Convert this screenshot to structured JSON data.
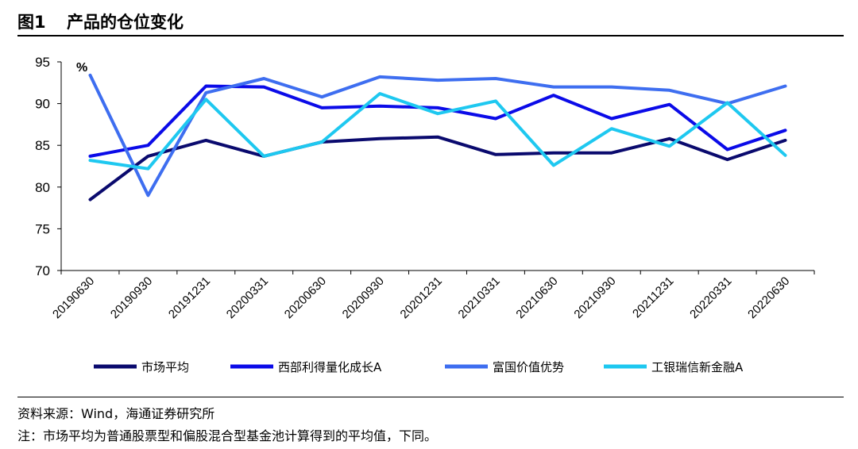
{
  "figure": {
    "number": "图1",
    "title": "产品的仓位变化"
  },
  "footer": {
    "source": "资料来源：Wind，海通证券研究所",
    "note": "注：市场平均为普通股票型和偏股混合型基金池计算得到的平均值，下同。"
  },
  "chart_data": {
    "type": "line",
    "unit_label": "%",
    "x": [
      "20190630",
      "20190930",
      "20191231",
      "20200331",
      "20200630",
      "20200930",
      "20201231",
      "20210331",
      "20210630",
      "20210930",
      "20211231",
      "20220331",
      "20220630"
    ],
    "ylim": [
      70,
      95
    ],
    "yticks": [
      70,
      75,
      80,
      85,
      90,
      95
    ],
    "grid": false,
    "legend_position": "bottom",
    "series": [
      {
        "name": "市场平均",
        "color": "#0a0a6e",
        "values": [
          78.5,
          83.7,
          85.6,
          83.7,
          85.4,
          85.8,
          86.0,
          83.9,
          84.1,
          84.1,
          85.8,
          83.3,
          85.6
        ]
      },
      {
        "name": "西部利得量化成长A",
        "color": "#0b0be8",
        "values": [
          83.7,
          85.0,
          92.1,
          92.0,
          89.5,
          89.7,
          89.5,
          88.2,
          91.0,
          88.2,
          89.9,
          84.5,
          86.8
        ]
      },
      {
        "name": "富国价值优势",
        "color": "#3e6ef0",
        "values": [
          93.4,
          79.0,
          91.3,
          93.0,
          90.8,
          93.2,
          92.8,
          93.0,
          92.0,
          92.0,
          91.6,
          90.0,
          92.1
        ]
      },
      {
        "name": "工银瑞信新金融A",
        "color": "#1ec8f0",
        "values": [
          83.2,
          82.2,
          90.5,
          83.7,
          85.4,
          91.2,
          88.8,
          90.3,
          82.6,
          87.0,
          84.9,
          90.1,
          83.8
        ]
      }
    ]
  }
}
